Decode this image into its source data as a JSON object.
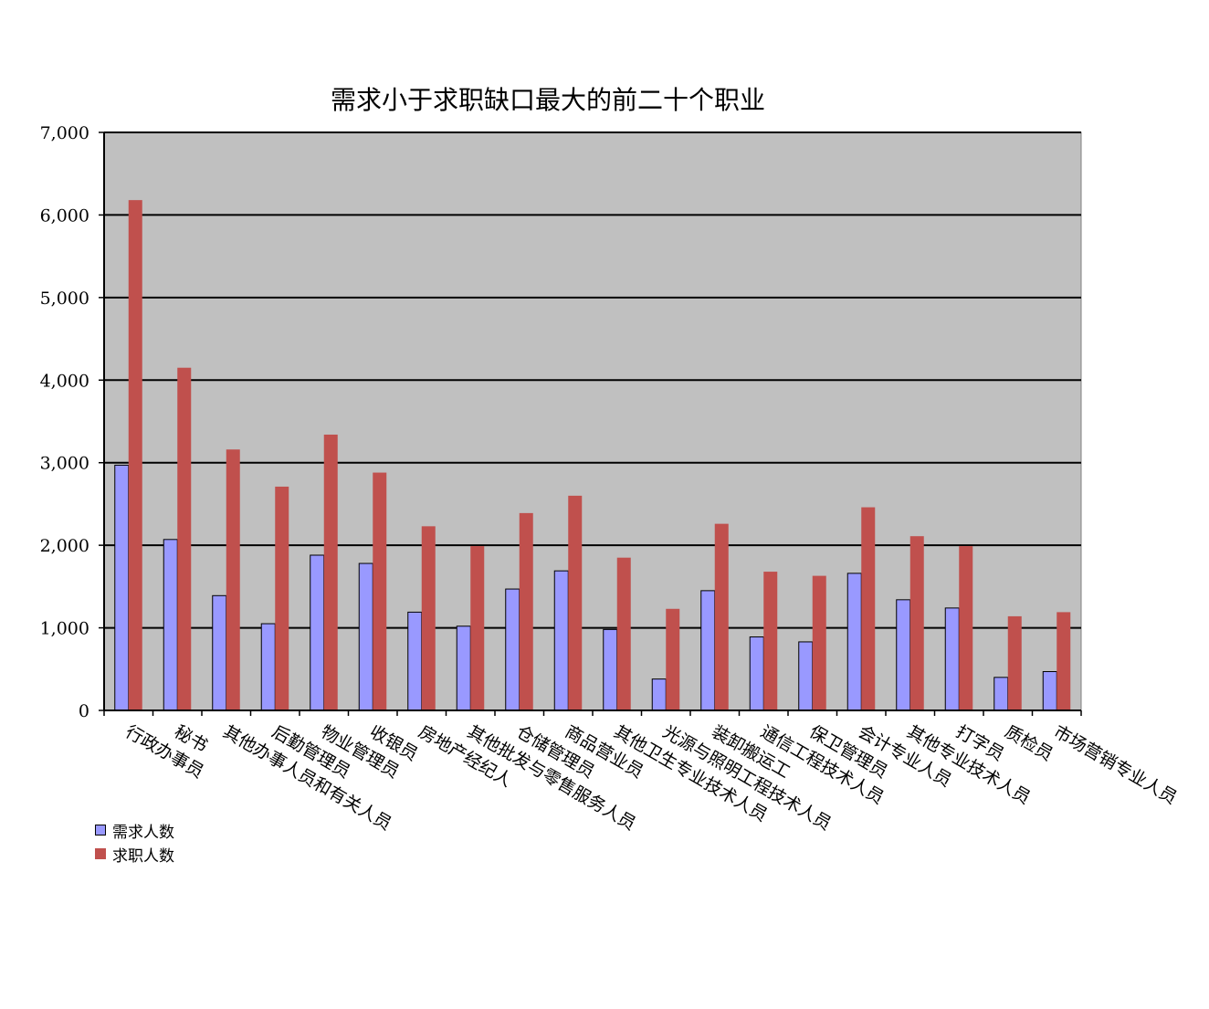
{
  "chart_data": {
    "type": "bar",
    "title": "需求小于求职缺口最大的前二十个职业",
    "xlabel": "",
    "ylabel": "",
    "ylim": [
      0,
      7000
    ],
    "yticks": [
      "0",
      "1,000",
      "2,000",
      "3,000",
      "4,000",
      "5,000",
      "6,000",
      "7,000"
    ],
    "grid": true,
    "legend_position": "bottom-left",
    "categories": [
      "行政办事员",
      "秘书",
      "其他办事人员和有关人员",
      "后勤管理员",
      "物业管理员",
      "收银员",
      "房地产经纪人",
      "其他批发与零售服务人员",
      "仓储管理员",
      "商品营业员",
      "其他卫生专业技术人员",
      "光源与照明工程技术人员",
      "装卸搬运工",
      "通信工程技术人员",
      "保卫管理员",
      "会计专业人员",
      "其他专业技术人员",
      "打字员",
      "质检员",
      "市场营销专业人员"
    ],
    "series": [
      {
        "name": "需求人数",
        "color": "#9999ff",
        "values": [
          2970,
          2070,
          1390,
          1050,
          1880,
          1780,
          1190,
          1020,
          1470,
          1690,
          980,
          380,
          1450,
          890,
          830,
          1660,
          1340,
          1240,
          400,
          470
        ]
      },
      {
        "name": "求职人数",
        "color": "#c0504d",
        "values": [
          6180,
          4150,
          3160,
          2710,
          3340,
          2880,
          2230,
          1990,
          2390,
          2600,
          1850,
          1230,
          2260,
          1680,
          1630,
          2460,
          2110,
          1990,
          1140,
          1190
        ]
      }
    ]
  }
}
